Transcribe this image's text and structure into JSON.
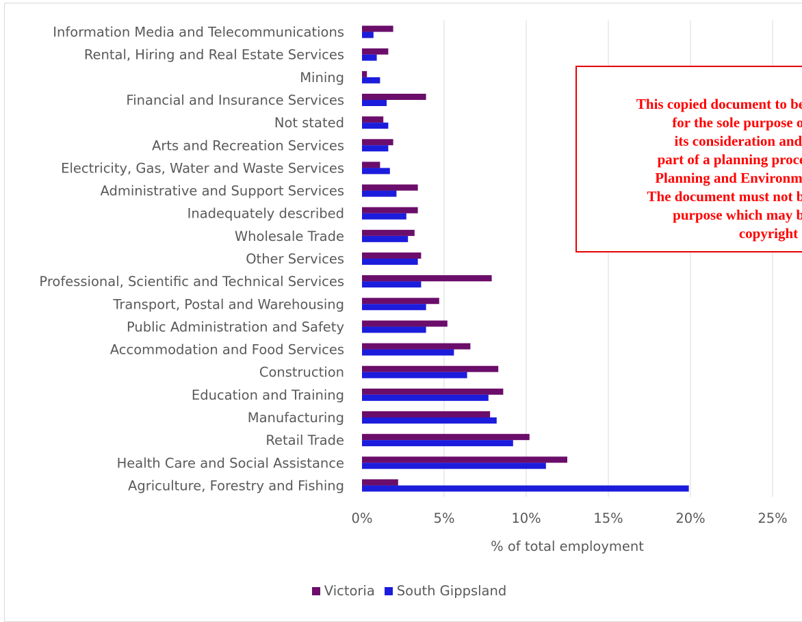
{
  "chart_data": {
    "type": "bar",
    "orientation": "horizontal",
    "categories": [
      "Information Media and Telecommunications",
      "Rental, Hiring and Real Estate Services",
      "Mining",
      "Financial and Insurance Services",
      "Not stated",
      "Arts and Recreation Services",
      "Electricity, Gas, Water and Waste Services",
      "Administrative and Support Services",
      "Inadequately described",
      "Wholesale Trade",
      "Other Services",
      "Professional, Scientific and Technical Services",
      "Transport, Postal and Warehousing",
      "Public Administration and Safety",
      "Accommodation and Food Services",
      "Construction",
      "Education and Training",
      "Manufacturing",
      "Retail Trade",
      "Health Care and Social Assistance",
      "Agriculture, Forestry and Fishing"
    ],
    "series": [
      {
        "name": "Victoria",
        "color": "#6b0d6b",
        "values": [
          1.9,
          1.6,
          0.3,
          3.9,
          1.3,
          1.9,
          1.1,
          3.4,
          3.4,
          3.2,
          3.6,
          7.9,
          4.7,
          5.2,
          6.6,
          8.3,
          8.6,
          7.8,
          10.2,
          12.5,
          2.2
        ]
      },
      {
        "name": "South Gippsland",
        "color": "#1c1cdc",
        "values": [
          0.7,
          0.9,
          1.1,
          1.5,
          1.6,
          1.6,
          1.7,
          2.1,
          2.7,
          2.8,
          3.4,
          3.6,
          3.9,
          3.9,
          5.6,
          6.4,
          7.7,
          8.2,
          9.2,
          11.2,
          19.9
        ]
      }
    ],
    "xlabel": "% of total employment",
    "xlim": [
      0,
      25
    ],
    "ticks": [
      0,
      5,
      10,
      15,
      20,
      25
    ],
    "tick_labels": [
      "0%",
      "5%",
      "10%",
      "15%",
      "20%",
      "25%"
    ],
    "grid": "vertical",
    "legend_position": "bottom"
  },
  "notice": {
    "text": "This copied document to be made available\nfor the sole purpose of enabling\nits consideration and review as\npart of a planning process under the\nPlanning and Environment Act 1987.\nThe document must not be used for any\npurpose which may breach any\ncopyright"
  }
}
